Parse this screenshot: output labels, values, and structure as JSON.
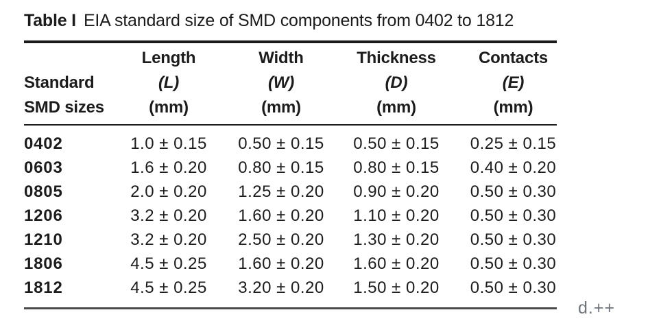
{
  "page": {
    "annotation": "d.++",
    "colors": {
      "background": "#ffffff",
      "text": "#1c1c1c",
      "rule": "#1a1a1a",
      "bottom_rule": "#4a4a4a",
      "annotation_text": "#6e747b"
    }
  },
  "table": {
    "title_label": "Table I",
    "title_text": "EIA standard size of SMD components from 0402 to 1812",
    "columns": [
      {
        "line1": "Standard",
        "line2": "SMD sizes"
      },
      {
        "name": "Length",
        "symbol": "(L)",
        "unit": "(mm)"
      },
      {
        "name": "Width",
        "symbol": "(W)",
        "unit": "(mm)"
      },
      {
        "name": "Thickness",
        "symbol": "(D)",
        "unit": "(mm)"
      },
      {
        "name": "Contacts",
        "symbol": "(E)",
        "unit": "(mm)"
      }
    ],
    "rows": [
      [
        "0402",
        "1.0 ± 0.15",
        "0.50 ± 0.15",
        "0.50 ± 0.15",
        "0.25 ± 0.15"
      ],
      [
        "0603",
        "1.6 ± 0.20",
        "0.80 ± 0.15",
        "0.80 ± 0.15",
        "0.40 ± 0.20"
      ],
      [
        "0805",
        "2.0 ± 0.20",
        "1.25 ± 0.20",
        "0.90 ± 0.20",
        "0.50 ± 0.30"
      ],
      [
        "1206",
        "3.2 ± 0.20",
        "1.60 ± 0.20",
        "1.10 ± 0.20",
        "0.50 ± 0.30"
      ],
      [
        "1210",
        "3.2 ± 0.20",
        "2.50 ± 0.20",
        "1.30 ± 0.20",
        "0.50 ± 0.30"
      ],
      [
        "1806",
        "4.5 ± 0.25",
        "1.60 ± 0.20",
        "1.60 ± 0.20",
        "0.50 ± 0.30"
      ],
      [
        "1812",
        "4.5 ± 0.25",
        "3.20 ± 0.20",
        "1.50 ± 0.20",
        "0.50 ± 0.30"
      ]
    ]
  }
}
